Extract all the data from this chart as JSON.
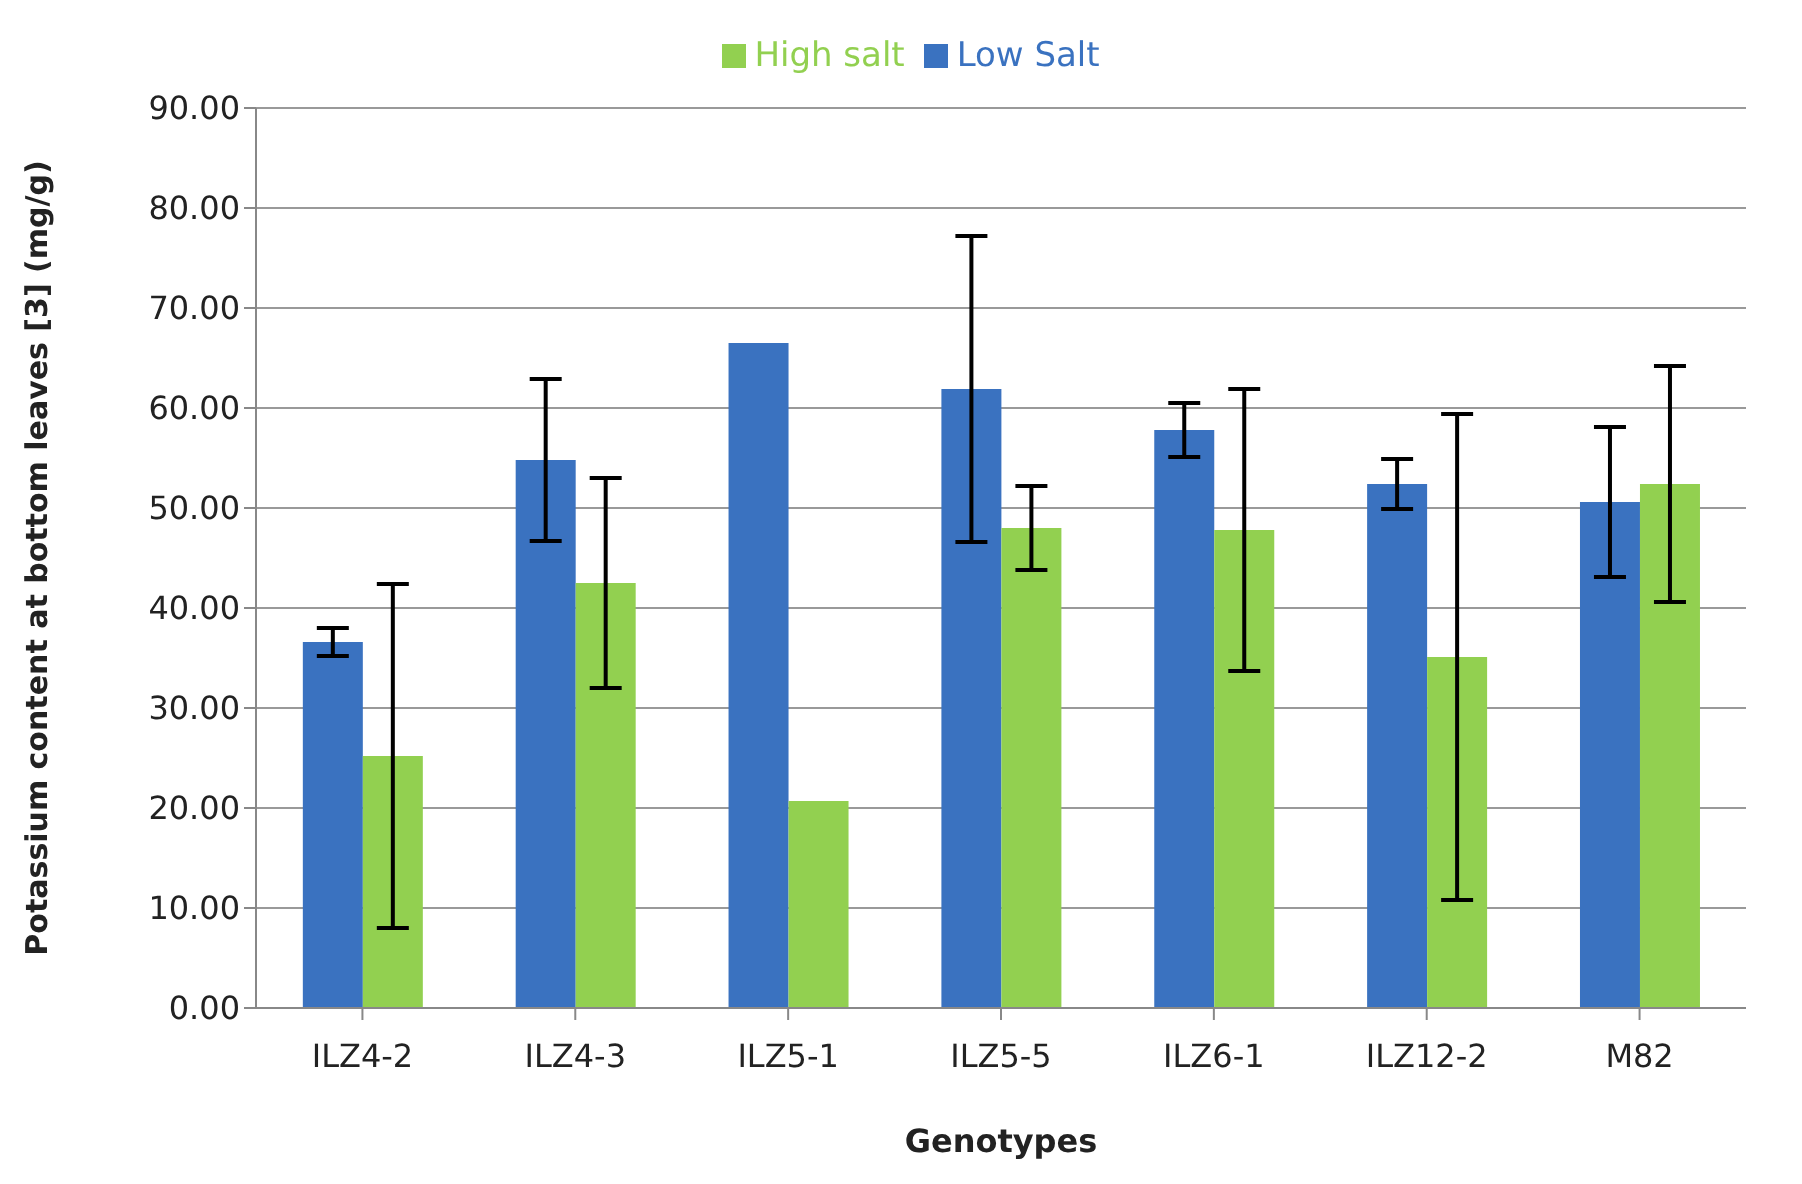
{
  "chart_data": {
    "type": "bar",
    "xlabel": "Genotypes",
    "ylabel": "Potassium content at bottom  leaves [3] (mg/g)",
    "categories": [
      "ILZ4-2",
      "ILZ4-3",
      "ILZ5-1",
      "ILZ5-5",
      "ILZ6-1",
      "ILZ12-2",
      "M82"
    ],
    "series": [
      {
        "name": "Low Salt",
        "color": "#3a72c0",
        "values": [
          36.6,
          54.8,
          66.5,
          61.9,
          57.8,
          52.4,
          50.6
        ],
        "errors": [
          1.4,
          8.1,
          null,
          15.3,
          2.7,
          2.5,
          7.5
        ]
      },
      {
        "name": "High salt",
        "color": "#92d050",
        "values": [
          25.2,
          42.5,
          20.7,
          48.0,
          47.8,
          35.1,
          52.4
        ],
        "errors": [
          17.2,
          10.5,
          null,
          4.2,
          14.1,
          24.3,
          11.8
        ]
      }
    ],
    "ylim": [
      0,
      90
    ],
    "yticks": [
      {
        "value": 0,
        "label": "0.00"
      },
      {
        "value": 10,
        "label": "10.00"
      },
      {
        "value": 20,
        "label": "20.00"
      },
      {
        "value": 30,
        "label": "30.00"
      },
      {
        "value": 40,
        "label": "40.00"
      },
      {
        "value": 50,
        "label": "50.00"
      },
      {
        "value": 60,
        "label": "60.00"
      },
      {
        "value": 70,
        "label": "70.00"
      },
      {
        "value": 80,
        "label": "80.00"
      },
      {
        "value": 90,
        "label": "90.00"
      }
    ],
    "grid": "y",
    "legend": "top"
  }
}
